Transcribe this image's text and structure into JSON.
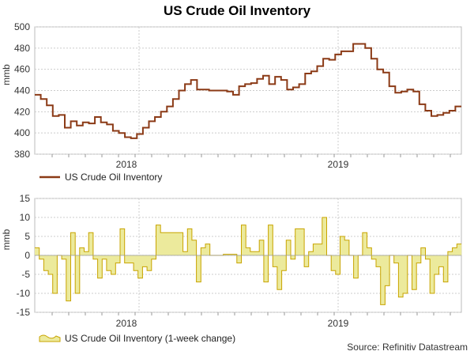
{
  "title": "US Crude Oil Inventory",
  "source": "Source: Refinitiv Datastream",
  "colors": {
    "level_line": "#8b3a16",
    "change_fill": "#ecea9c",
    "change_line": "#c8a400",
    "grid": "#cccccc"
  },
  "chart_data": [
    {
      "type": "line",
      "ylabel": "mmb",
      "ylim": [
        380,
        500
      ],
      "yticks": [
        380,
        400,
        420,
        440,
        460,
        480,
        500
      ],
      "xticks": [
        "2018",
        "2019"
      ],
      "legend": "US Crude Oil Inventory",
      "legend_position": "bottom-left",
      "grid": true,
      "series": [
        {
          "name": "US Crude Oil Inventory",
          "style": "step",
          "values": [
            436,
            432,
            426,
            416,
            417,
            405,
            411,
            407,
            410,
            409,
            415,
            410,
            408,
            402,
            400,
            396,
            395,
            399,
            405,
            411,
            415,
            420,
            425,
            432,
            440,
            446,
            450,
            441,
            441,
            440,
            440,
            440,
            439,
            436,
            444,
            446,
            447,
            451,
            454,
            446,
            453,
            450,
            441,
            443,
            446,
            456,
            458,
            463,
            470,
            469,
            474,
            477,
            477,
            484,
            484,
            480,
            470,
            460,
            457,
            444,
            438,
            439,
            441,
            439,
            427,
            421,
            416,
            417,
            419,
            421,
            425
          ]
        }
      ]
    },
    {
      "type": "area",
      "ylabel": "mmb",
      "ylim": [
        -15,
        15
      ],
      "yticks": [
        -15,
        -10,
        -5,
        0,
        5,
        10,
        15
      ],
      "xticks": [
        "2018",
        "2019"
      ],
      "legend": "US Crude Oil Inventory (1-week change)",
      "legend_position": "bottom-left",
      "grid": true,
      "series": [
        {
          "name": "US Crude Oil Inventory (1-week change)",
          "style": "step",
          "values": [
            2,
            -1,
            -4,
            -5,
            -10,
            0,
            -1,
            -12,
            6,
            -10,
            2,
            1,
            6,
            -1,
            -6,
            -1,
            -4,
            -5,
            -2,
            7,
            -2,
            -2,
            -4,
            -6,
            -3,
            -4,
            -1,
            8,
            6,
            6,
            6,
            6,
            6,
            1,
            7,
            4,
            -7,
            2,
            3,
            0,
            0,
            0,
            0.3,
            0.3,
            0.3,
            -2,
            8,
            2,
            1,
            1,
            4,
            -7,
            8,
            -3,
            -9,
            -4,
            4,
            -1,
            7,
            7,
            -3,
            1,
            3,
            3,
            10,
            0,
            -4,
            -5,
            5,
            4,
            0,
            -6,
            0,
            6,
            2,
            -1,
            -3,
            -13,
            -8,
            0,
            -2,
            -11,
            -10,
            0,
            -9,
            -2,
            2,
            -1,
            -10,
            -5,
            -3,
            -7,
            1,
            2,
            3
          ]
        }
      ]
    }
  ]
}
